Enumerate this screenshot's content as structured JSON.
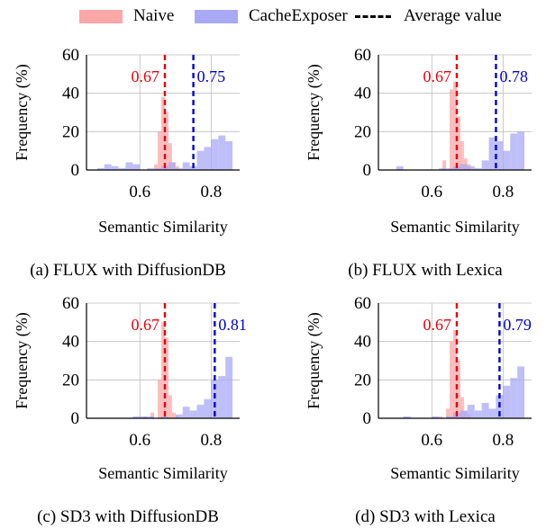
{
  "legend": {
    "naive_label": "Naive",
    "cacheexposer_label": "CacheExposer",
    "average_label": "Average value"
  },
  "colors": {
    "naive_fill": "#f9a7a7",
    "cacheexposer_fill": "#a8a9f5",
    "naive_line": "#e8000b",
    "cacheexposer_line": "#0000d6",
    "grid": "#bdbdbd"
  },
  "chart_data": [
    {
      "type": "bar",
      "caption": "(a) FLUX with DiffusionDB",
      "xlabel": "Semantic Similarity",
      "ylabel": "Frequency (%)",
      "xlim": [
        0.45,
        0.88
      ],
      "ylim": [
        0,
        60
      ],
      "xticks": [
        0.6,
        0.8
      ],
      "yticks": [
        0,
        20,
        40,
        60
      ],
      "grid": true,
      "bin_width": 0.02,
      "series": [
        {
          "name": "Naive",
          "bins": [
            [
              0.64,
              3
            ],
            [
              0.65,
              20
            ],
            [
              0.66,
              38
            ],
            [
              0.67,
              30
            ],
            [
              0.68,
              14
            ],
            [
              0.69,
              4
            ],
            [
              0.7,
              2
            ]
          ],
          "mean": 0.67,
          "mean_label": "0.67"
        },
        {
          "name": "CacheExposer",
          "bins": [
            [
              0.48,
              1
            ],
            [
              0.5,
              3
            ],
            [
              0.52,
              2
            ],
            [
              0.54,
              1
            ],
            [
              0.56,
              4
            ],
            [
              0.58,
              3
            ],
            [
              0.62,
              1
            ],
            [
              0.64,
              1
            ],
            [
              0.66,
              2
            ],
            [
              0.68,
              4
            ],
            [
              0.7,
              1
            ],
            [
              0.72,
              4
            ],
            [
              0.74,
              2
            ],
            [
              0.76,
              10
            ],
            [
              0.78,
              12
            ],
            [
              0.8,
              16
            ],
            [
              0.82,
              18
            ],
            [
              0.84,
              15
            ]
          ],
          "mean": 0.75,
          "mean_label": "0.75"
        }
      ]
    },
    {
      "type": "bar",
      "caption": "(b) FLUX with Lexica",
      "xlabel": "Semantic Similarity",
      "ylabel": "Frequency (%)",
      "xlim": [
        0.45,
        0.88
      ],
      "ylim": [
        0,
        60
      ],
      "xticks": [
        0.6,
        0.8
      ],
      "yticks": [
        0,
        20,
        40,
        60
      ],
      "grid": true,
      "bin_width": 0.02,
      "series": [
        {
          "name": "Naive",
          "bins": [
            [
              0.63,
              5
            ],
            [
              0.65,
              42
            ],
            [
              0.66,
              46
            ],
            [
              0.67,
              28
            ],
            [
              0.68,
              15
            ],
            [
              0.69,
              6
            ],
            [
              0.7,
              3
            ]
          ],
          "mean": 0.67,
          "mean_label": "0.67"
        },
        {
          "name": "CacheExposer",
          "bins": [
            [
              0.5,
              2
            ],
            [
              0.62,
              1
            ],
            [
              0.64,
              1
            ],
            [
              0.66,
              2
            ],
            [
              0.68,
              3
            ],
            [
              0.7,
              2
            ],
            [
              0.72,
              1
            ],
            [
              0.74,
              5
            ],
            [
              0.76,
              17
            ],
            [
              0.78,
              15
            ],
            [
              0.8,
              10
            ],
            [
              0.82,
              19
            ],
            [
              0.84,
              20
            ]
          ],
          "mean": 0.78,
          "mean_label": "0.78"
        }
      ]
    },
    {
      "type": "bar",
      "caption": "(c) SD3 with DiffusionDB",
      "xlabel": "Semantic Similarity",
      "ylabel": "Frequency (%)",
      "xlim": [
        0.45,
        0.88
      ],
      "ylim": [
        0,
        60
      ],
      "xticks": [
        0.6,
        0.8
      ],
      "yticks": [
        0,
        20,
        40,
        60
      ],
      "grid": true,
      "bin_width": 0.02,
      "series": [
        {
          "name": "Naive",
          "bins": [
            [
              0.61,
              1
            ],
            [
              0.63,
              3
            ],
            [
              0.65,
              20
            ],
            [
              0.66,
              50
            ],
            [
              0.67,
              42
            ],
            [
              0.68,
              12
            ],
            [
              0.69,
              3
            ],
            [
              0.7,
              1
            ]
          ],
          "mean": 0.67,
          "mean_label": "0.67"
        },
        {
          "name": "CacheExposer",
          "bins": [
            [
              0.58,
              1
            ],
            [
              0.6,
              1
            ],
            [
              0.62,
              1
            ],
            [
              0.66,
              1
            ],
            [
              0.7,
              2
            ],
            [
              0.72,
              6
            ],
            [
              0.74,
              4
            ],
            [
              0.76,
              7
            ],
            [
              0.78,
              10
            ],
            [
              0.8,
              20
            ],
            [
              0.82,
              22
            ],
            [
              0.84,
              32
            ]
          ],
          "mean": 0.81,
          "mean_label": "0.81"
        }
      ]
    },
    {
      "type": "bar",
      "caption": "(d) SD3 with Lexica",
      "xlabel": "Semantic Similarity",
      "ylabel": "Frequency (%)",
      "xlim": [
        0.45,
        0.88
      ],
      "ylim": [
        0,
        60
      ],
      "xticks": [
        0.6,
        0.8
      ],
      "yticks": [
        0,
        20,
        40,
        60
      ],
      "grid": true,
      "bin_width": 0.02,
      "series": [
        {
          "name": "Naive",
          "bins": [
            [
              0.62,
              1
            ],
            [
              0.64,
              5
            ],
            [
              0.65,
              40
            ],
            [
              0.66,
              46
            ],
            [
              0.67,
              30
            ],
            [
              0.68,
              11
            ],
            [
              0.69,
              4
            ],
            [
              0.7,
              2
            ]
          ],
          "mean": 0.67,
          "mean_label": "0.67"
        },
        {
          "name": "CacheExposer",
          "bins": [
            [
              0.52,
              1
            ],
            [
              0.6,
              1
            ],
            [
              0.64,
              1
            ],
            [
              0.66,
              3
            ],
            [
              0.68,
              4
            ],
            [
              0.7,
              7
            ],
            [
              0.72,
              4
            ],
            [
              0.74,
              8
            ],
            [
              0.76,
              5
            ],
            [
              0.78,
              12
            ],
            [
              0.8,
              17
            ],
            [
              0.82,
              21
            ],
            [
              0.84,
              27
            ]
          ],
          "mean": 0.79,
          "mean_label": "0.79"
        }
      ]
    }
  ]
}
